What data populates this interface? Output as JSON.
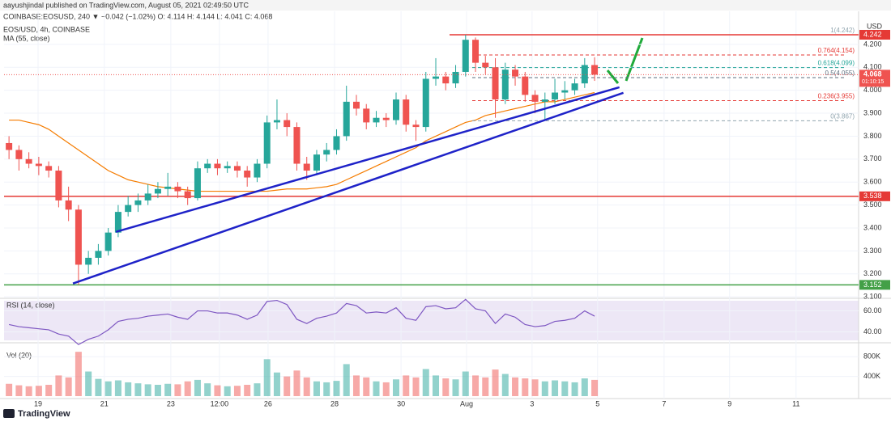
{
  "header": {
    "publisher": "aayushjindal published on TradingView.com, August 05, 2021 02:49:50 UTC",
    "symbol_line": "COINBASE:EOSUSD, 240 ▼ −0.042 (−1.02%) O: 4.114 H: 4.144 L: 4.041 C: 4.068",
    "footer": "TradingView"
  },
  "chart_data": [
    {
      "type": "candlestick",
      "title": "EOS/USD, 4h, COINBASE",
      "currency": "USD",
      "xlim": [
        0,
        86.1
      ],
      "xticks": [
        {
          "value": 3.43,
          "label": "19"
        },
        {
          "value": 10.1,
          "label": "21"
        },
        {
          "value": 16.8,
          "label": "23"
        },
        {
          "value": 21.7,
          "label": "12:00"
        },
        {
          "value": 26.6,
          "label": "26"
        },
        {
          "value": 33.3,
          "label": "28"
        },
        {
          "value": 40.0,
          "label": "30"
        },
        {
          "value": 46.6,
          "label": "Aug"
        },
        {
          "value": 53.2,
          "label": "3"
        },
        {
          "value": 59.8,
          "label": "5"
        },
        {
          "value": 66.5,
          "label": "7"
        },
        {
          "value": 73.1,
          "label": "9"
        },
        {
          "value": 79.8,
          "label": "11"
        }
      ],
      "ylim": [
        3.097,
        4.33
      ],
      "yticks": [
        {
          "value": 4.2,
          "label": "4.200"
        },
        {
          "value": 4.1,
          "label": "4.100"
        },
        {
          "value": 4.0,
          "label": "4.000"
        },
        {
          "value": 3.9,
          "label": "3.900"
        },
        {
          "value": 3.8,
          "label": "3.800"
        },
        {
          "value": 3.7,
          "label": "3.700"
        },
        {
          "value": 3.6,
          "label": "3.600"
        },
        {
          "value": 3.5,
          "label": "3.500"
        },
        {
          "value": 3.4,
          "label": "3.400"
        },
        {
          "value": 3.3,
          "label": "3.300"
        },
        {
          "value": 3.2,
          "label": "3.200"
        },
        {
          "value": 3.1,
          "label": "3.100"
        }
      ],
      "up_color": "#26a69a",
      "down_color": "#ef5350",
      "open": [
        3.77,
        3.74,
        3.7,
        3.68,
        3.67,
        3.65,
        3.52,
        3.48,
        3.24,
        3.27,
        3.3,
        3.38,
        3.47,
        3.5,
        3.52,
        3.55,
        3.57,
        3.58,
        3.56,
        3.53,
        3.66,
        3.68,
        3.66,
        3.67,
        3.65,
        3.62,
        3.68,
        3.86,
        3.87,
        3.84,
        3.68,
        3.65,
        3.72,
        3.74,
        3.8,
        3.95,
        3.92,
        3.86,
        3.88,
        3.87,
        3.96,
        3.85,
        3.84,
        4.05,
        4.06,
        4.03,
        4.08,
        4.22,
        4.12,
        4.1,
        3.96,
        4.09,
        4.06,
        3.98,
        3.95,
        3.96,
        3.99,
        4.0,
        4.03,
        4.11
      ],
      "high": [
        3.8,
        3.76,
        3.73,
        3.71,
        3.69,
        3.67,
        3.58,
        3.5,
        3.3,
        3.33,
        3.4,
        3.5,
        3.54,
        3.55,
        3.59,
        3.6,
        3.64,
        3.6,
        3.58,
        3.69,
        3.7,
        3.7,
        3.69,
        3.69,
        3.67,
        3.7,
        3.89,
        3.96,
        3.9,
        3.86,
        3.71,
        3.74,
        3.77,
        3.83,
        4.02,
        3.98,
        3.94,
        3.91,
        3.9,
        3.99,
        3.98,
        3.87,
        4.08,
        4.14,
        4.08,
        4.11,
        4.242,
        4.23,
        4.15,
        4.14,
        4.12,
        4.11,
        4.08,
        4.0,
        3.99,
        4.05,
        4.04,
        4.05,
        4.14,
        4.144
      ],
      "low": [
        3.7,
        3.65,
        3.66,
        3.63,
        3.62,
        3.49,
        3.43,
        3.152,
        3.2,
        3.24,
        3.28,
        3.36,
        3.45,
        3.47,
        3.5,
        3.53,
        3.54,
        3.53,
        3.5,
        3.52,
        3.64,
        3.63,
        3.64,
        3.62,
        3.58,
        3.6,
        3.66,
        3.83,
        3.8,
        3.65,
        3.61,
        3.63,
        3.69,
        3.72,
        3.78,
        3.89,
        3.83,
        3.84,
        3.84,
        3.85,
        3.82,
        3.78,
        3.82,
        4.02,
        4.0,
        4.01,
        4.06,
        4.08,
        4.07,
        3.88,
        3.94,
        4.02,
        3.95,
        3.9,
        3.867,
        3.94,
        3.96,
        3.98,
        4.01,
        4.041
      ],
      "close": [
        3.74,
        3.7,
        3.68,
        3.67,
        3.65,
        3.52,
        3.48,
        3.24,
        3.27,
        3.3,
        3.38,
        3.47,
        3.5,
        3.52,
        3.55,
        3.57,
        3.58,
        3.56,
        3.53,
        3.66,
        3.68,
        3.66,
        3.67,
        3.65,
        3.62,
        3.68,
        3.86,
        3.87,
        3.84,
        3.68,
        3.65,
        3.72,
        3.74,
        3.8,
        3.95,
        3.92,
        3.86,
        3.88,
        3.87,
        3.96,
        3.85,
        3.84,
        4.05,
        4.06,
        4.03,
        4.08,
        4.22,
        4.12,
        4.1,
        3.96,
        4.09,
        4.06,
        3.98,
        3.95,
        3.96,
        3.99,
        4.0,
        4.03,
        4.11,
        4.068
      ],
      "overlays": [
        {
          "name": "MA (55, close)",
          "color": "#f57c00",
          "values": [
            3.87,
            3.87,
            3.86,
            3.85,
            3.83,
            3.8,
            3.77,
            3.74,
            3.71,
            3.68,
            3.65,
            3.63,
            3.61,
            3.6,
            3.59,
            3.58,
            3.575,
            3.57,
            3.565,
            3.56,
            3.56,
            3.56,
            3.56,
            3.56,
            3.56,
            3.56,
            3.56,
            3.565,
            3.57,
            3.57,
            3.57,
            3.575,
            3.58,
            3.59,
            3.61,
            3.63,
            3.65,
            3.67,
            3.69,
            3.71,
            3.73,
            3.75,
            3.78,
            3.8,
            3.82,
            3.84,
            3.86,
            3.87,
            3.89,
            3.9,
            3.91,
            3.92,
            3.93,
            3.94,
            3.95,
            3.95,
            3.96,
            3.97,
            3.98,
            3.99
          ]
        }
      ],
      "hlines": [
        {
          "value": 4.242,
          "color": "#e53935"
        },
        {
          "value": 3.538,
          "color": "#e53935"
        },
        {
          "value": 3.152,
          "color": "#43a047"
        }
      ],
      "trendlines": [
        {
          "color": "#1e22c8",
          "x": [
            6.94,
            62.4
          ],
          "y": [
            3.158,
            3.989
          ]
        },
        {
          "color": "#1e22c8",
          "x": [
            11.27,
            62.0
          ],
          "y": [
            3.383,
            4.013
          ]
        }
      ],
      "fibonacci": [
        {
          "value": 4.242,
          "label": "1(4.242)",
          "color": "#90a4ae"
        },
        {
          "value": 4.154,
          "label": "0.764(4.154)",
          "color": "#e53935"
        },
        {
          "value": 4.099,
          "label": "0.618(4.099)",
          "color": "#26a69a"
        },
        {
          "value": 4.055,
          "label": "0.5(4.055)",
          "color": "#5d6d7e"
        },
        {
          "value": 3.955,
          "label": "0.236(3.955)",
          "color": "#e53935"
        },
        {
          "value": 3.867,
          "label": "0(3.867)",
          "color": "#90a4ae"
        }
      ],
      "last_price": {
        "value": 4.068,
        "countdown": "01:10:15"
      }
    },
    {
      "type": "line",
      "title": "RSI (14, close)",
      "color": "#7e57c2",
      "ylim": [
        31.2,
        71.2
      ],
      "yticks": [
        {
          "value": 60,
          "label": "60.00"
        },
        {
          "value": 40,
          "label": "40.00"
        }
      ],
      "values": [
        47,
        45,
        44,
        43,
        42,
        38,
        36,
        28,
        33,
        36,
        42,
        50,
        52,
        53,
        55,
        56,
        57,
        54,
        52,
        60,
        60,
        58,
        58,
        56,
        52,
        56,
        69,
        70,
        66,
        52,
        48,
        53,
        55,
        58,
        67,
        65,
        58,
        59,
        58,
        63,
        53,
        51,
        64,
        65,
        62,
        63,
        71,
        62,
        60,
        48,
        57,
        54,
        47,
        45,
        46,
        50,
        51,
        53,
        60,
        55
      ]
    },
    {
      "type": "volume",
      "title": "Vol (20)",
      "ylim": [
        0,
        1067000
      ],
      "yticks": [
        {
          "value": 800000,
          "label": "800K"
        },
        {
          "value": 400000,
          "label": "400K"
        }
      ],
      "values": [
        250000,
        220000,
        200000,
        210000,
        230000,
        420000,
        380000,
        900000,
        500000,
        350000,
        300000,
        320000,
        280000,
        260000,
        240000,
        230000,
        250000,
        240000,
        300000,
        330000,
        260000,
        220000,
        200000,
        210000,
        230000,
        260000,
        750000,
        480000,
        400000,
        520000,
        380000,
        300000,
        280000,
        310000,
        650000,
        420000,
        380000,
        300000,
        280000,
        340000,
        420000,
        380000,
        550000,
        420000,
        360000,
        340000,
        500000,
        420000,
        380000,
        540000,
        450000,
        380000,
        360000,
        340000,
        300000,
        320000,
        300000,
        280000,
        360000,
        330000
      ]
    }
  ]
}
